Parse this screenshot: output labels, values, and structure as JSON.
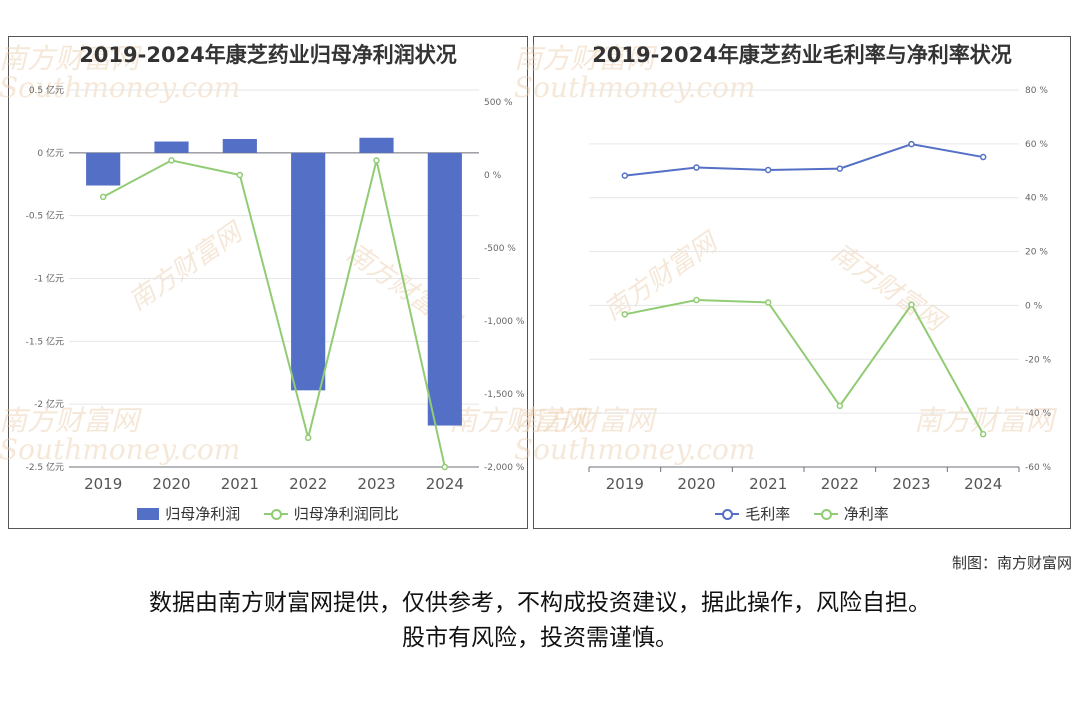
{
  "credit": "制图：南方财富网",
  "disclaimer": {
    "line1": "数据由南方财富网提供，仅供参考，不构成投资建议，据此操作，风险自担。",
    "line2": "股市有风险，投资需谨慎。"
  },
  "watermark": {
    "cn": "南方财富网",
    "en": "Southmoney.com"
  },
  "colors": {
    "bar": "#5470c6",
    "green": "#91cc75",
    "blue": "#5470c6",
    "axis": "#666666",
    "grid": "#e6e6e6"
  },
  "chart_data": [
    {
      "type": "bar",
      "title": "2019-2024年康芝药业归母净利润状况",
      "categories": [
        "2019",
        "2020",
        "2021",
        "2022",
        "2023",
        "2024"
      ],
      "series": [
        {
          "name": "归母净利润",
          "type": "bar",
          "axis": "left",
          "values": [
            -0.26,
            0.09,
            0.11,
            -1.89,
            0.12,
            -2.17
          ]
        },
        {
          "name": "归母净利润同比",
          "type": "line",
          "axis": "right",
          "values": [
            -150,
            100,
            0,
            -1800,
            100,
            -2000
          ]
        }
      ],
      "y_left": {
        "ylim": [
          -2.5,
          0.5
        ],
        "ticks": [
          "0.5 亿元",
          "0 亿元",
          "-0.5 亿元",
          "-1 亿元",
          "-1.5 亿元",
          "-2 亿元",
          "-2.5 亿元"
        ]
      },
      "y_right": {
        "ylim": [
          -2000,
          500
        ],
        "ticks": [
          "500 %",
          "0 %",
          "-500 %",
          "-1,000 %",
          "-1,500 %",
          "-2,000 %"
        ]
      },
      "grid": true,
      "legend": "bottom"
    },
    {
      "type": "line",
      "title": "2019-2024年康芝药业毛利率与净利率状况",
      "categories": [
        "2019",
        "2020",
        "2021",
        "2022",
        "2023",
        "2024"
      ],
      "series": [
        {
          "name": "毛利率",
          "values": [
            48.2,
            51.2,
            50.3,
            50.8,
            59.9,
            55.1
          ]
        },
        {
          "name": "净利率",
          "values": [
            -3.3,
            2.0,
            1.1,
            -37.3,
            0.3,
            -47.8
          ]
        }
      ],
      "ylim": [
        -60,
        80
      ],
      "ticks": [
        "80 %",
        "60 %",
        "40 %",
        "20 %",
        "0 %",
        "-20 %",
        "-40 %",
        "-60 %"
      ],
      "grid": true,
      "legend": "bottom"
    }
  ]
}
